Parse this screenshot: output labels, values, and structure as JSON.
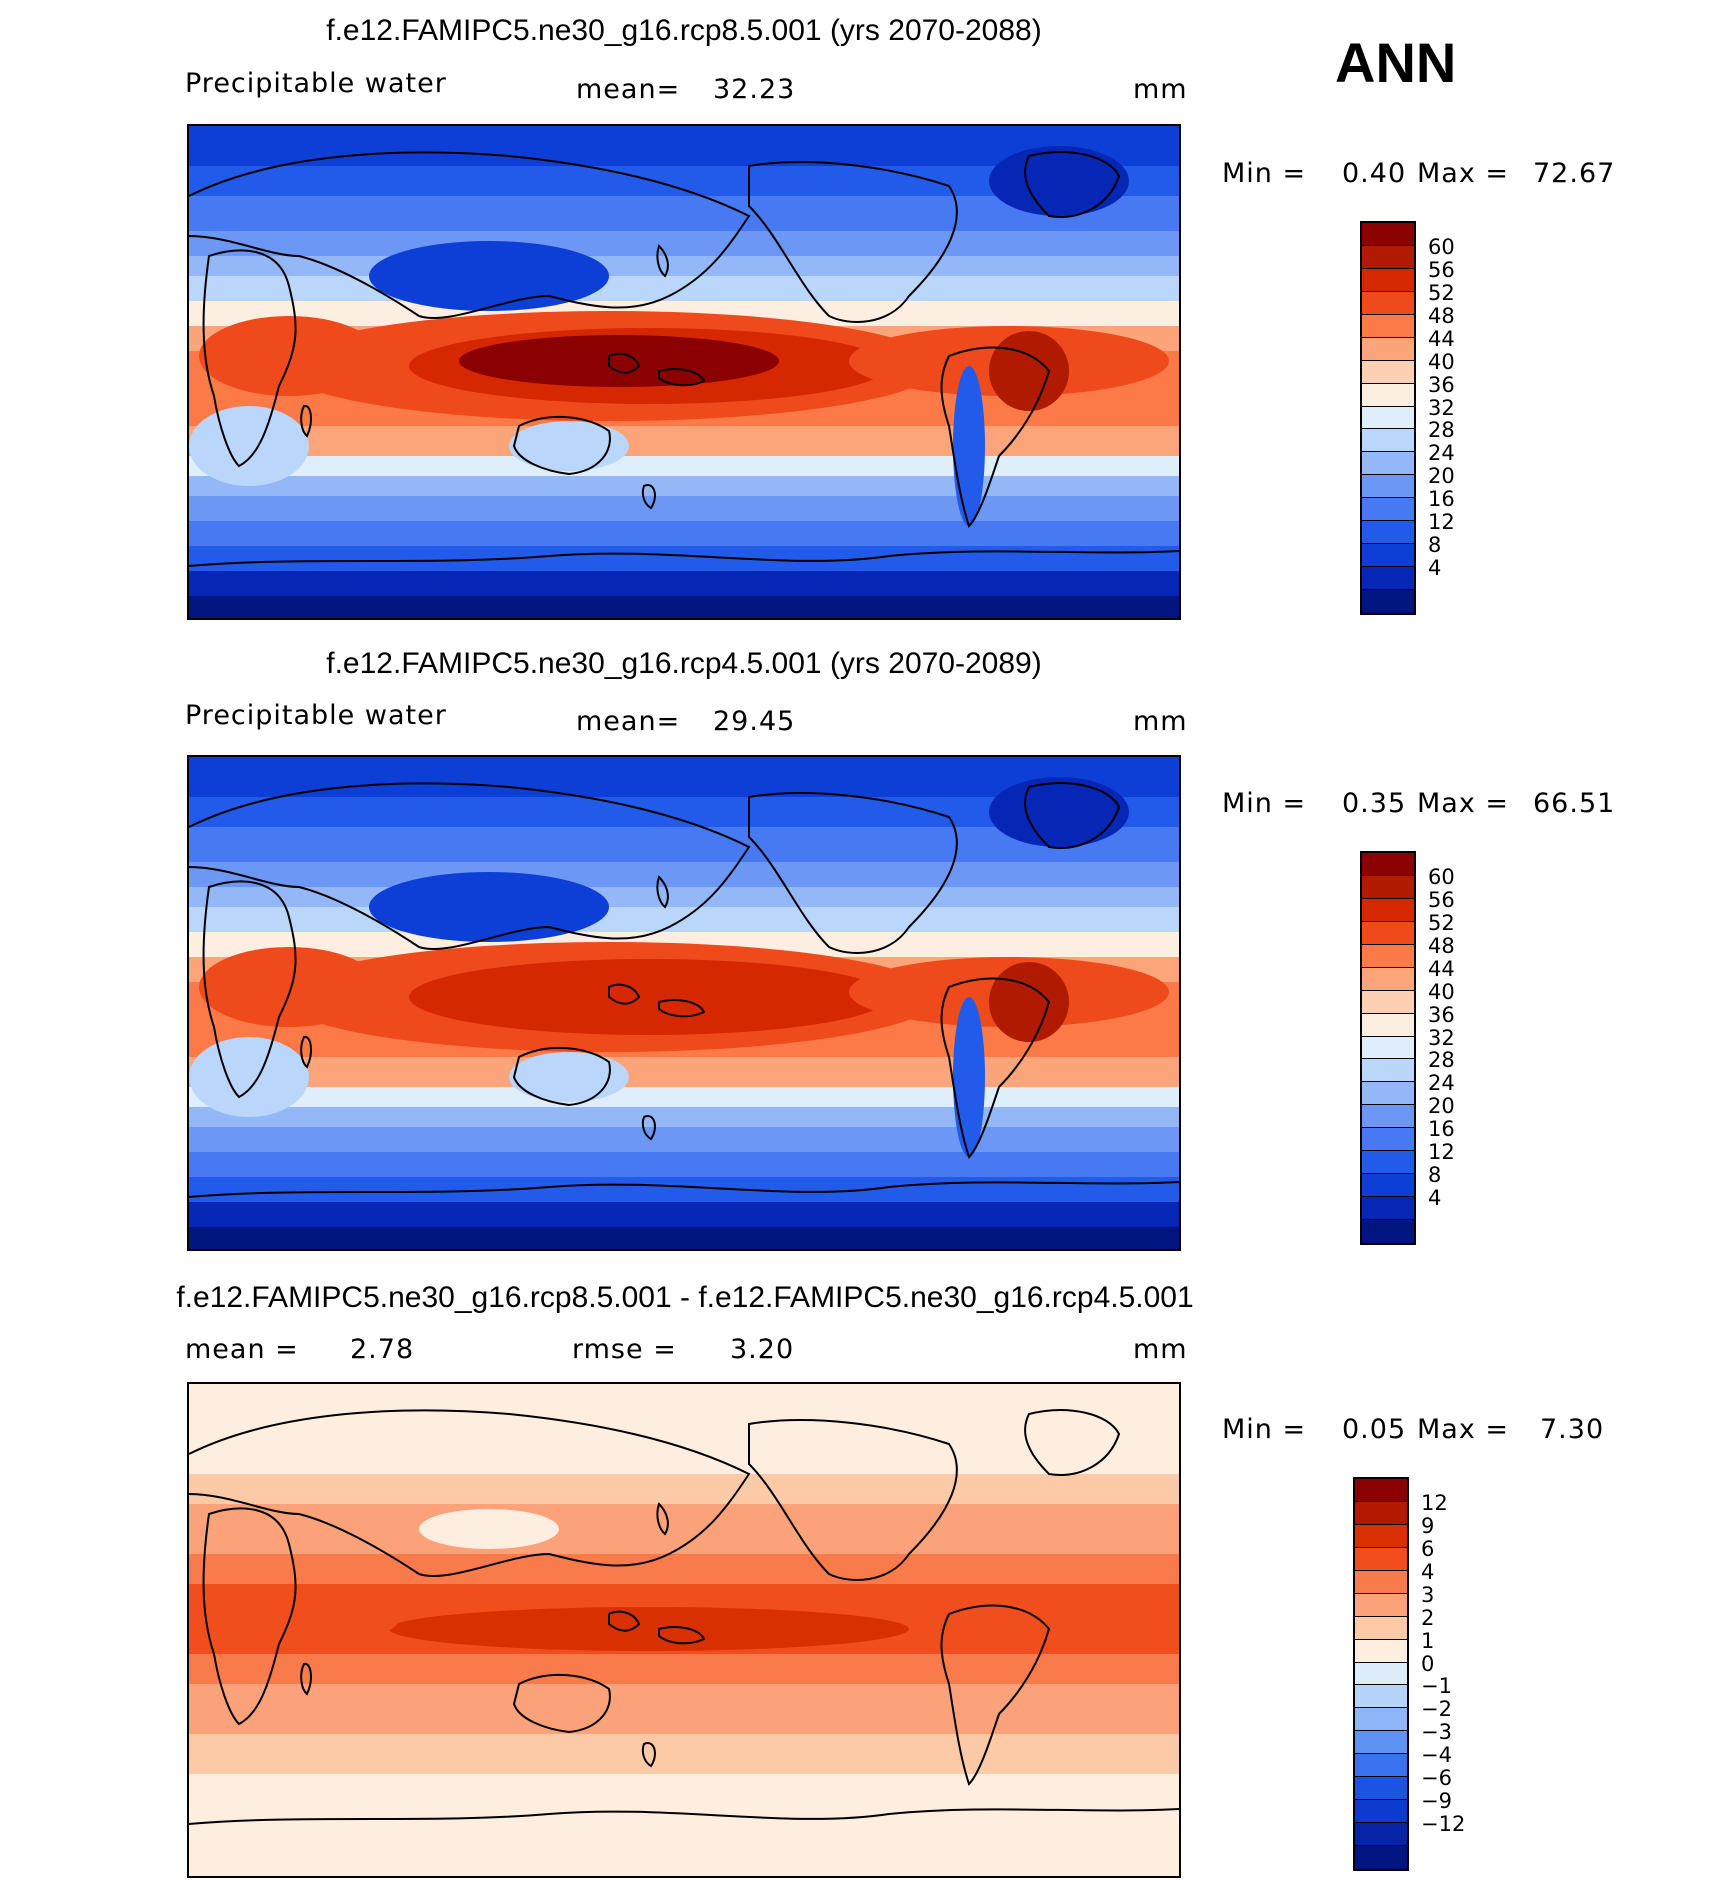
{
  "season": "ANN",
  "panels": [
    {
      "title": "f.e12.FAMIPC5.ne30_g16.rcp8.5.001 (yrs 2070-2088)",
      "variable": "Precipitable water",
      "stat_label": "mean=",
      "stat_value": "32.23",
      "units": "mm",
      "min_label": "Min =",
      "min_value": "0.40",
      "max_label": "Max =",
      "max_value": "72.67",
      "colorbar": {
        "colors": [
          "#8b0000",
          "#b01a00",
          "#d52800",
          "#ef4a1c",
          "#fb7a48",
          "#fca47a",
          "#fdd0b4",
          "#fdeee2",
          "#dfeefb",
          "#bad6fa",
          "#93b7f7",
          "#6c97f4",
          "#4679f2",
          "#225ae9",
          "#0d3fd6",
          "#0627b5",
          "#00157f"
        ],
        "ticks": [
          "60",
          "56",
          "52",
          "48",
          "44",
          "40",
          "36",
          "32",
          "28",
          "24",
          "20",
          "16",
          "12",
          "8",
          "4"
        ]
      },
      "field": "strong"
    },
    {
      "title": "f.e12.FAMIPC5.ne30_g16.rcp4.5.001 (yrs 2070-2089)",
      "variable": "Precipitable water",
      "stat_label": "mean=",
      "stat_value": "29.45",
      "units": "mm",
      "min_label": "Min =",
      "min_value": "0.35",
      "max_label": "Max =",
      "max_value": "66.51",
      "colorbar": {
        "colors": [
          "#8b0000",
          "#b01a00",
          "#d52800",
          "#ef4a1c",
          "#fb7a48",
          "#fca47a",
          "#fdd0b4",
          "#fdeee2",
          "#dfeefb",
          "#bad6fa",
          "#93b7f7",
          "#6c97f4",
          "#4679f2",
          "#225ae9",
          "#0d3fd6",
          "#0627b5",
          "#00157f"
        ],
        "ticks": [
          "60",
          "56",
          "52",
          "48",
          "44",
          "40",
          "36",
          "32",
          "28",
          "24",
          "20",
          "16",
          "12",
          "8",
          "4"
        ]
      },
      "field": "medium"
    },
    {
      "title": "f.e12.FAMIPC5.ne30_g16.rcp8.5.001 - f.e12.FAMIPC5.ne30_g16.rcp4.5.001",
      "variable": "mean =",
      "variable_value": "2.78",
      "stat_label": "rmse =",
      "stat_value": "3.20",
      "units": "mm",
      "min_label": "Min =",
      "min_value": "0.05",
      "max_label": "Max =",
      "max_value": "7.30",
      "colorbar": {
        "colors": [
          "#8b0000",
          "#b51800",
          "#d93000",
          "#f04e1c",
          "#f97a4a",
          "#fca27a",
          "#fdcaa8",
          "#feeedf",
          "#dcecfb",
          "#b6d3fa",
          "#8db5f7",
          "#5f93f3",
          "#3a71ee",
          "#1b54e3",
          "#0d3bd0",
          "#0724a8",
          "#00157f"
        ],
        "ticks": [
          "12",
          "9",
          "6",
          "4",
          "3",
          "2",
          "1",
          "0",
          "−1",
          "−2",
          "−3",
          "−4",
          "−6",
          "−9",
          "−12"
        ]
      },
      "field": "diff"
    }
  ]
}
